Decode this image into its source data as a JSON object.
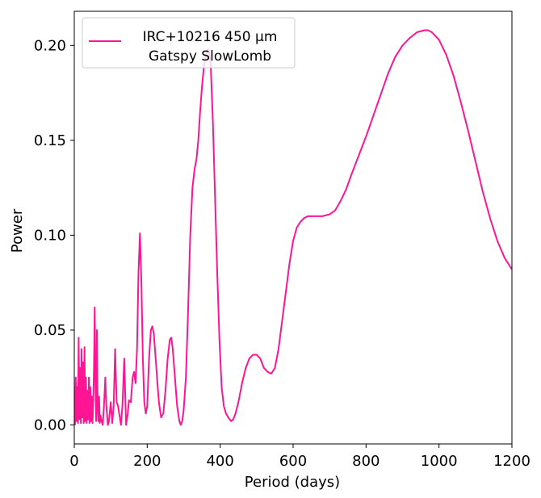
{
  "chart_data": {
    "type": "line",
    "title": "",
    "xlabel": "Period (days)",
    "ylabel": "Power",
    "xlim": [
      0,
      1200
    ],
    "ylim": [
      -0.01,
      0.218
    ],
    "xticks": [
      0,
      200,
      400,
      600,
      800,
      1000,
      1200
    ],
    "yticks": [
      0.0,
      0.05,
      0.1,
      0.15,
      0.2
    ],
    "xtick_labels": [
      "0",
      "200",
      "400",
      "600",
      "800",
      "1000",
      "1200"
    ],
    "ytick_labels": [
      "0.00",
      "0.05",
      "0.10",
      "0.15",
      "0.20"
    ],
    "grid": false,
    "legend_position": "top-left",
    "series": [
      {
        "name": "IRC+10216 450 μm\nGatspy SlowLomb",
        "legend_line1": "IRC+10216 450 μm",
        "legend_line2": "Gatspy SlowLomb",
        "color": "#ff1493",
        "points": [
          [
            2,
            0.0
          ],
          [
            4,
            0.025
          ],
          [
            6,
            0.002
          ],
          [
            8,
            0.02
          ],
          [
            10,
            0.001
          ],
          [
            12,
            0.046
          ],
          [
            14,
            0.003
          ],
          [
            16,
            0.03
          ],
          [
            18,
            0.001
          ],
          [
            20,
            0.04
          ],
          [
            22,
            0.004
          ],
          [
            24,
            0.033
          ],
          [
            26,
            0.001
          ],
          [
            28,
            0.041
          ],
          [
            30,
            0.002
          ],
          [
            32,
            0.025
          ],
          [
            34,
            0.001
          ],
          [
            36,
            0.018
          ],
          [
            38,
            0.003
          ],
          [
            40,
            0.025
          ],
          [
            42,
            0.001
          ],
          [
            44,
            0.02
          ],
          [
            46,
            0.002
          ],
          [
            48,
            0.015
          ],
          [
            50,
            0.001
          ],
          [
            52,
            0.012
          ],
          [
            54,
            0.03
          ],
          [
            56,
            0.062
          ],
          [
            58,
            0.02
          ],
          [
            60,
            0.002
          ],
          [
            62,
            0.05
          ],
          [
            64,
            0.01
          ],
          [
            66,
            0.002
          ],
          [
            68,
            0.015
          ],
          [
            70,
            0.001
          ],
          [
            72,
            0.005
          ],
          [
            75,
            0.002
          ],
          [
            78,
            0.0
          ],
          [
            82,
            0.012
          ],
          [
            85,
            0.025
          ],
          [
            88,
            0.01
          ],
          [
            92,
            0.0
          ],
          [
            95,
            0.002
          ],
          [
            100,
            0.012
          ],
          [
            104,
            0.001
          ],
          [
            108,
            0.01
          ],
          [
            112,
            0.04
          ],
          [
            116,
            0.012
          ],
          [
            120,
            0.01
          ],
          [
            124,
            0.005
          ],
          [
            128,
            0.0
          ],
          [
            132,
            0.01
          ],
          [
            137,
            0.035
          ],
          [
            142,
            0.0
          ],
          [
            146,
            0.005
          ],
          [
            150,
            0.013
          ],
          [
            155,
            0.012
          ],
          [
            160,
            0.025
          ],
          [
            164,
            0.028
          ],
          [
            168,
            0.022
          ],
          [
            172,
            0.04
          ],
          [
            176,
            0.08
          ],
          [
            180,
            0.101
          ],
          [
            184,
            0.075
          ],
          [
            188,
            0.035
          ],
          [
            192,
            0.012
          ],
          [
            196,
            0.006
          ],
          [
            200,
            0.01
          ],
          [
            205,
            0.035
          ],
          [
            210,
            0.05
          ],
          [
            214,
            0.052
          ],
          [
            218,
            0.048
          ],
          [
            222,
            0.038
          ],
          [
            228,
            0.022
          ],
          [
            232,
            0.012
          ],
          [
            238,
            0.004
          ],
          [
            244,
            0.006
          ],
          [
            250,
            0.018
          ],
          [
            256,
            0.035
          ],
          [
            262,
            0.045
          ],
          [
            266,
            0.046
          ],
          [
            270,
            0.04
          ],
          [
            276,
            0.025
          ],
          [
            282,
            0.01
          ],
          [
            288,
            0.002
          ],
          [
            292,
            0.0
          ],
          [
            296,
            0.002
          ],
          [
            300,
            0.008
          ],
          [
            306,
            0.025
          ],
          [
            312,
            0.06
          ],
          [
            318,
            0.1
          ],
          [
            324,
            0.125
          ],
          [
            330,
            0.135
          ],
          [
            335,
            0.14
          ],
          [
            340,
            0.15
          ],
          [
            345,
            0.165
          ],
          [
            350,
            0.178
          ],
          [
            356,
            0.19
          ],
          [
            362,
            0.196
          ],
          [
            366,
            0.198
          ],
          [
            370,
            0.196
          ],
          [
            374,
            0.19
          ],
          [
            380,
            0.16
          ],
          [
            386,
            0.12
          ],
          [
            392,
            0.08
          ],
          [
            398,
            0.045
          ],
          [
            404,
            0.02
          ],
          [
            410,
            0.01
          ],
          [
            416,
            0.006
          ],
          [
            422,
            0.004
          ],
          [
            430,
            0.002
          ],
          [
            436,
            0.003
          ],
          [
            442,
            0.006
          ],
          [
            450,
            0.012
          ],
          [
            460,
            0.022
          ],
          [
            470,
            0.03
          ],
          [
            480,
            0.035
          ],
          [
            490,
            0.037
          ],
          [
            500,
            0.037
          ],
          [
            510,
            0.035
          ],
          [
            520,
            0.03
          ],
          [
            530,
            0.028
          ],
          [
            540,
            0.027
          ],
          [
            550,
            0.03
          ],
          [
            560,
            0.04
          ],
          [
            570,
            0.055
          ],
          [
            580,
            0.07
          ],
          [
            590,
            0.085
          ],
          [
            600,
            0.097
          ],
          [
            610,
            0.104
          ],
          [
            620,
            0.107
          ],
          [
            630,
            0.109
          ],
          [
            640,
            0.11
          ],
          [
            660,
            0.11
          ],
          [
            680,
            0.11
          ],
          [
            700,
            0.111
          ],
          [
            715,
            0.113
          ],
          [
            730,
            0.118
          ],
          [
            745,
            0.124
          ],
          [
            760,
            0.132
          ],
          [
            780,
            0.142
          ],
          [
            800,
            0.152
          ],
          [
            820,
            0.163
          ],
          [
            840,
            0.174
          ],
          [
            860,
            0.185
          ],
          [
            880,
            0.194
          ],
          [
            900,
            0.2
          ],
          [
            920,
            0.204
          ],
          [
            940,
            0.207
          ],
          [
            960,
            0.208
          ],
          [
            970,
            0.208
          ],
          [
            980,
            0.207
          ],
          [
            1000,
            0.203
          ],
          [
            1020,
            0.195
          ],
          [
            1040,
            0.184
          ],
          [
            1060,
            0.17
          ],
          [
            1080,
            0.155
          ],
          [
            1100,
            0.139
          ],
          [
            1120,
            0.123
          ],
          [
            1140,
            0.109
          ],
          [
            1160,
            0.097
          ],
          [
            1180,
            0.088
          ],
          [
            1200,
            0.082
          ]
        ]
      }
    ]
  }
}
